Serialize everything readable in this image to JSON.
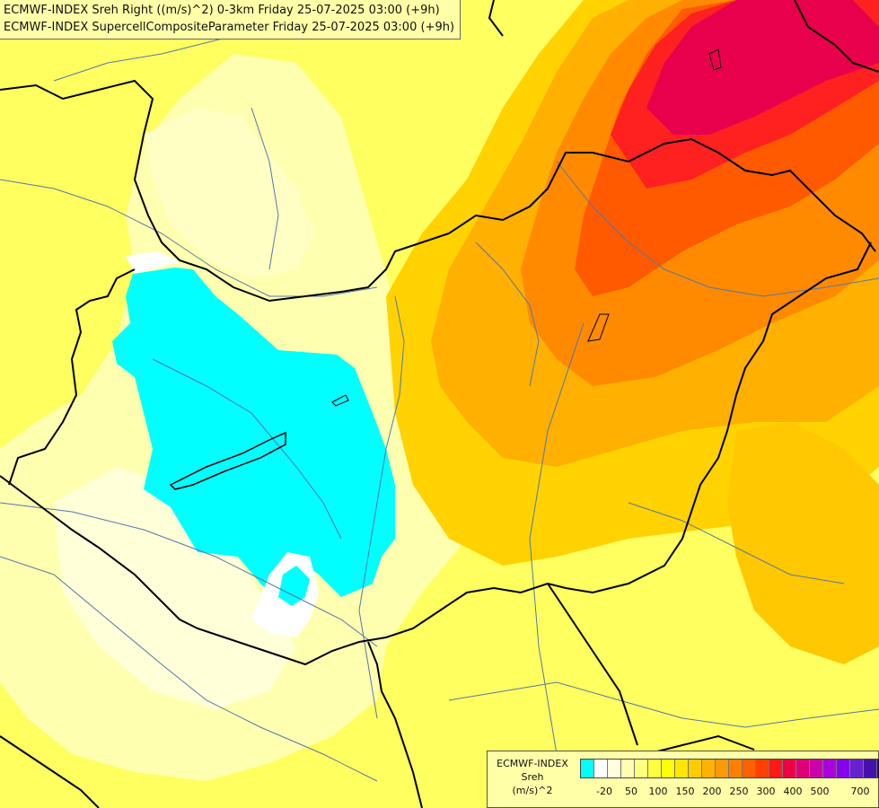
{
  "header": {
    "line1": "ECMWF-INDEX Sreh Right ((m/s)^2) 0-3km Friday 25-07-2025 03:00 (+9h)",
    "line2": "ECMWF-INDEX SupercellCompositeParameter Friday 25-07-2025 03:00 (+9h)"
  },
  "legend": {
    "title1": "ECMWF-INDEX",
    "title2": "Sreh",
    "title3": "(m/s)^2",
    "colors": [
      "#00ffff",
      "#ffffff",
      "#ffffdd",
      "#ffffb0",
      "#ffff80",
      "#ffff40",
      "#ffff00",
      "#ffe600",
      "#ffcc00",
      "#ffb300",
      "#ff9900",
      "#ff8000",
      "#ff6000",
      "#ff4000",
      "#ff1a1a",
      "#ee0044",
      "#dd0077",
      "#cc00aa",
      "#aa00dd",
      "#8800ee",
      "#6622cc",
      "#4411aa",
      "#220088"
    ],
    "ticks": [
      "-20",
      "50",
      "100",
      "150",
      "200",
      "250",
      "300",
      "400",
      "500",
      "700"
    ]
  }
}
